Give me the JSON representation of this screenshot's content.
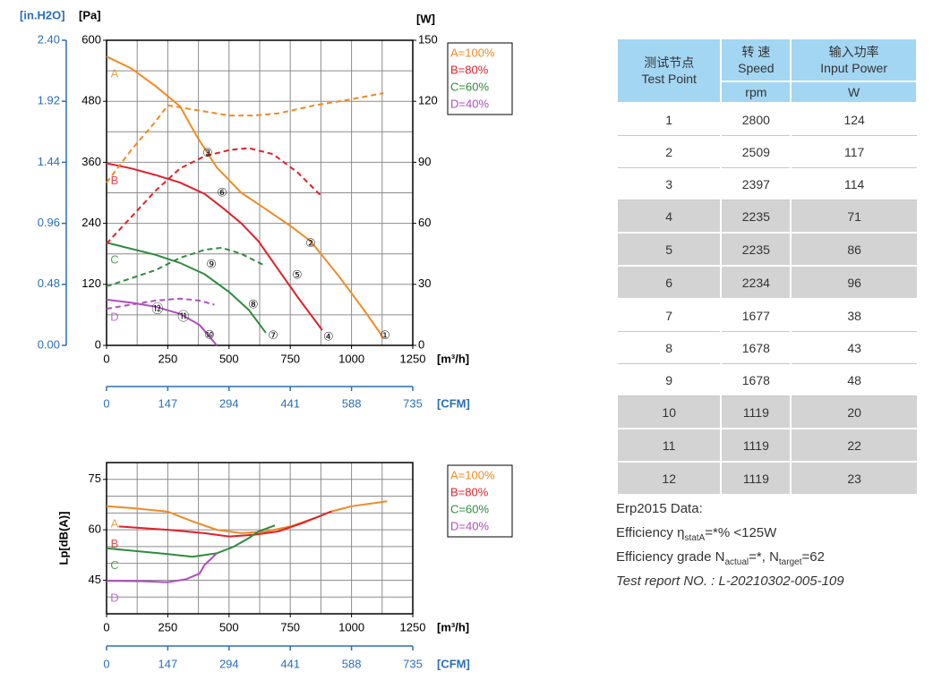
{
  "chart_data": [
    {
      "type": "line",
      "x_label": "[m³/h]",
      "x2_label": "[CFM]",
      "y_label": "[Pa]",
      "y2_label": "[W]",
      "y3_label": "[in.H2O]",
      "xlim": [
        0,
        1250
      ],
      "xticks": [
        0,
        250,
        500,
        750,
        1000,
        1250
      ],
      "xminor": [
        125,
        375,
        625,
        875,
        1125
      ],
      "x2lim": [
        0,
        735
      ],
      "x2ticks": [
        0,
        147,
        294,
        441,
        588,
        735
      ],
      "ylim": [
        0,
        600
      ],
      "yticks": [
        0,
        120,
        240,
        360,
        480,
        600
      ],
      "yminor": [
        60,
        180,
        300,
        420,
        540
      ],
      "y2lim": [
        0,
        150
      ],
      "y2ticks": [
        0,
        30,
        60,
        90,
        120,
        150
      ],
      "y3lim": [
        0,
        2.4
      ],
      "y3ticks": [
        {
          "value": 0,
          "label": "0.00"
        },
        0.48,
        0.96,
        1.44,
        1.92,
        {
          "value": 2.4,
          "label": "2.40"
        }
      ],
      "grid": true,
      "legend": "right",
      "series": [
        {
          "name": "A=100%",
          "curve_label": "A",
          "color": "#f08a24",
          "x": [
            0,
            100,
            200,
            300,
            370,
            450,
            550,
            650,
            750,
            833,
            950,
            1050,
            1130
          ],
          "values": [
            568,
            545,
            510,
            470,
            410,
            350,
            300,
            268,
            235,
            205,
            135,
            70,
            15
          ]
        },
        {
          "name": "B=80%",
          "curve_label": "B",
          "color": "#e0202a",
          "x": [
            0,
            100,
            200,
            300,
            400,
            470,
            550,
            620,
            700,
            780,
            880
          ],
          "values": [
            358,
            348,
            335,
            320,
            298,
            272,
            240,
            205,
            150,
            95,
            30
          ]
        },
        {
          "name": "C=60%",
          "curve_label": "C",
          "color": "#2e8b3e",
          "x": [
            0,
            100,
            200,
            300,
            400,
            500,
            580,
            650
          ],
          "values": [
            202,
            190,
            178,
            162,
            140,
            105,
            70,
            25
          ]
        },
        {
          "name": "D=40%",
          "curve_label": "D",
          "color": "#b04cc0",
          "x": [
            0,
            100,
            200,
            300,
            380,
            450
          ],
          "values": [
            90,
            84,
            76,
            62,
            40,
            0
          ]
        },
        {
          "axis": "y2",
          "dash": true,
          "color": "#f08a24",
          "x": [
            0,
            100,
            200,
            250,
            350,
            500,
            600,
            700,
            850,
            1000,
            1130
          ],
          "values": [
            80,
            96,
            110,
            118,
            116,
            113,
            113,
            114,
            118,
            121,
            124
          ]
        },
        {
          "axis": "y2",
          "dash": true,
          "color": "#e0202a",
          "x": [
            0,
            100,
            200,
            300,
            400,
            500,
            580,
            680,
            780,
            880
          ],
          "values": [
            50,
            63,
            76,
            87,
            93,
            96,
            97,
            94,
            85,
            73
          ]
        },
        {
          "axis": "y2",
          "dash": true,
          "color": "#2e8b3e",
          "x": [
            0,
            100,
            200,
            300,
            400,
            470,
            550,
            650
          ],
          "values": [
            29,
            33,
            37,
            43,
            47,
            48,
            45,
            39
          ]
        },
        {
          "axis": "y2",
          "dash": true,
          "color": "#b04cc0",
          "x": [
            0,
            100,
            200,
            300,
            380,
            440
          ],
          "values": [
            18,
            20,
            22,
            23,
            22,
            20
          ]
        }
      ],
      "test_points": {
        "labels": [
          "①",
          "②",
          "③",
          "④",
          "⑤",
          "⑥",
          "⑦",
          "⑧",
          "⑨",
          "⑩",
          "⑪",
          "⑫"
        ],
        "x": [
          1137,
          833,
          413,
          906,
          778,
          472,
          680,
          599,
          428,
          420,
          314,
          208
        ],
        "values": [
          18,
          200,
          377,
          16,
          137,
          299,
          18,
          79,
          158,
          19,
          55,
          70
        ]
      }
    },
    {
      "type": "line",
      "x_label": "[m³/h]",
      "x2_label": "[CFM]",
      "y_label": "Lp[dB(A)]",
      "xlim": [
        0,
        1250
      ],
      "xticks": [
        0,
        250,
        500,
        750,
        1000,
        1250
      ],
      "xminor": [
        125,
        375,
        625,
        875,
        1125
      ],
      "x2lim": [
        0,
        735
      ],
      "x2ticks": [
        0,
        147,
        294,
        441,
        588,
        735
      ],
      "ylim": [
        35,
        80
      ],
      "yticks": [
        45,
        60,
        75
      ],
      "yminor": [
        40,
        50,
        55,
        65,
        70
      ],
      "grid": true,
      "legend": "right",
      "series": [
        {
          "name": "A=100%",
          "curve_label": "A",
          "color": "#f08a24",
          "x": [
            0,
            100,
            250,
            350,
            450,
            550,
            650,
            750,
            850,
            920,
            1000,
            1145
          ],
          "values": [
            67,
            66.5,
            65.4,
            62.5,
            60,
            59,
            59.5,
            61,
            63.5,
            65.5,
            67,
            68.5
          ]
        },
        {
          "name": "B=80%",
          "curve_label": "B",
          "color": "#e0202a",
          "x": [
            50,
            150,
            250,
            400,
            500,
            600,
            700,
            800,
            918
          ],
          "values": [
            61,
            60.5,
            60,
            59,
            58,
            58.5,
            59.5,
            62,
            65.5
          ]
        },
        {
          "name": "C=60%",
          "curve_label": "C",
          "color": "#2e8b3e",
          "x": [
            0,
            100,
            250,
            350,
            450,
            520,
            580,
            620,
            687
          ],
          "values": [
            54.5,
            53.8,
            52.8,
            52,
            53,
            55,
            57.5,
            59.5,
            61.3
          ]
        },
        {
          "name": "D=40%",
          "curve_label": "D",
          "color": "#b04cc0",
          "x": [
            0,
            150,
            250,
            325,
            380,
            400,
            450
          ],
          "values": [
            44.8,
            44.7,
            44.4,
            45.3,
            47,
            49.5,
            53
          ]
        }
      ]
    }
  ],
  "table": {
    "columns": [
      {
        "name": "测试节点",
        "name_en": "Test Point"
      },
      {
        "name": "转 速",
        "name_en": "Speed",
        "unit": "rpm"
      },
      {
        "name": "输入功率",
        "name_en": "Input Power",
        "unit": "W"
      }
    ],
    "rows": [
      [
        1,
        2800,
        124
      ],
      [
        2,
        2509,
        117
      ],
      [
        3,
        2397,
        114
      ],
      [
        4,
        2235,
        71
      ],
      [
        5,
        2235,
        86
      ],
      [
        6,
        2234,
        96
      ],
      [
        7,
        1677,
        38
      ],
      [
        8,
        1678,
        43
      ],
      [
        9,
        1678,
        48
      ],
      [
        10,
        1119,
        20
      ],
      [
        11,
        1119,
        22
      ],
      [
        12,
        1119,
        23
      ]
    ],
    "shaded_rows": [
      3,
      4,
      5,
      9,
      10,
      11
    ]
  },
  "notes": {
    "title": "Erp2015  Data:",
    "lines": [
      [
        {
          "text": "Efficiency η"
        },
        {
          "text": "statA",
          "sub": true
        },
        {
          "text": "=*%  <125W"
        }
      ],
      [
        {
          "text": "Efficiency grade N"
        },
        {
          "text": "actual",
          "sub": true
        },
        {
          "text": "=*, N"
        },
        {
          "text": "target",
          "sub": true
        },
        {
          "text": "=62"
        }
      ]
    ],
    "report": "Test report NO. : L-20210302-005-109"
  }
}
